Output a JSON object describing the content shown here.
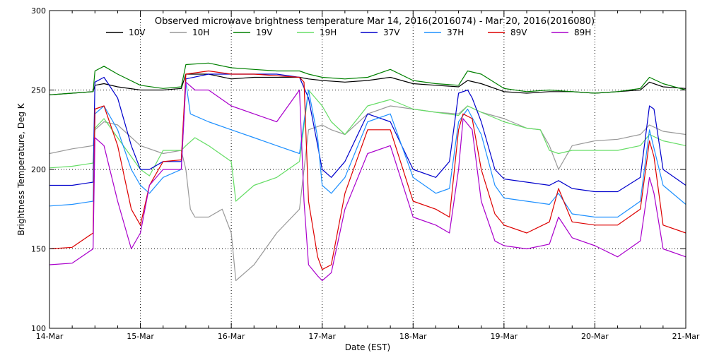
{
  "chart_data": {
    "type": "line",
    "title": "Observed microwave brightness temperature Mar 14, 2016(2016074) - Mar 20, 2016(2016080)",
    "xlabel": "Date (EST)",
    "ylabel": "Brightness Temperature, Deg K",
    "xlim": [
      0,
      7
    ],
    "ylim": [
      100,
      300
    ],
    "x_ticks": [
      {
        "x": 0,
        "label": "14-Mar"
      },
      {
        "x": 1,
        "label": "15-Mar"
      },
      {
        "x": 2,
        "label": "16-Mar"
      },
      {
        "x": 3,
        "label": "17-Mar"
      },
      {
        "x": 4,
        "label": "18-Mar"
      },
      {
        "x": 5,
        "label": "19-Mar"
      },
      {
        "x": 6,
        "label": "20-Mar"
      },
      {
        "x": 7,
        "label": "21-Mar"
      }
    ],
    "y_ticks": [
      100,
      150,
      200,
      250,
      300
    ],
    "grid": {
      "x_dotted_at": [
        1,
        2,
        3,
        4,
        5,
        6
      ],
      "y_dotted_at": [
        150,
        200,
        250
      ]
    },
    "legend_position": "top",
    "series": [
      {
        "name": "10V",
        "color": "#000000",
        "x": [
          0,
          0.25,
          0.48,
          0.5,
          0.6,
          0.75,
          1.0,
          1.25,
          1.45,
          1.5,
          1.75,
          2.0,
          2.25,
          2.5,
          2.75,
          2.85,
          3.0,
          3.25,
          3.5,
          3.75,
          4.0,
          4.25,
          4.5,
          4.6,
          4.75,
          5.0,
          5.25,
          5.5,
          5.75,
          6.0,
          6.25,
          6.5,
          6.6,
          6.75,
          7.0
        ],
        "y": [
          247,
          248,
          249,
          253,
          254,
          252,
          250,
          250,
          251,
          260,
          260,
          257,
          258,
          258,
          258,
          257,
          256,
          255,
          256,
          258,
          254,
          253,
          252,
          256,
          254,
          249,
          248,
          249,
          249,
          248,
          249,
          250,
          255,
          252,
          251
        ]
      },
      {
        "name": "10H",
        "color": "#999999",
        "x": [
          0,
          0.25,
          0.48,
          0.5,
          0.6,
          0.75,
          1.0,
          1.25,
          1.45,
          1.5,
          1.55,
          1.6,
          1.75,
          1.9,
          2.0,
          2.05,
          2.25,
          2.5,
          2.75,
          2.85,
          3.0,
          3.1,
          3.25,
          3.5,
          3.75,
          4.0,
          4.25,
          4.5,
          4.6,
          4.75,
          5.0,
          5.25,
          5.4,
          5.5,
          5.6,
          5.75,
          6.0,
          6.25,
          6.5,
          6.6,
          6.75,
          7.0
        ],
        "y": [
          210,
          213,
          215,
          225,
          230,
          228,
          215,
          210,
          212,
          200,
          175,
          170,
          170,
          175,
          160,
          130,
          140,
          160,
          175,
          225,
          228,
          225,
          222,
          235,
          240,
          238,
          236,
          235,
          240,
          236,
          232,
          226,
          225,
          215,
          200,
          215,
          218,
          219,
          222,
          228,
          224,
          222
        ]
      },
      {
        "name": "19V",
        "color": "#008000",
        "x": [
          0,
          0.25,
          0.48,
          0.5,
          0.6,
          0.75,
          1.0,
          1.25,
          1.45,
          1.5,
          1.75,
          2.0,
          2.25,
          2.5,
          2.75,
          2.85,
          3.0,
          3.25,
          3.5,
          3.75,
          4.0,
          4.25,
          4.5,
          4.6,
          4.75,
          5.0,
          5.25,
          5.5,
          5.75,
          6.0,
          6.25,
          6.5,
          6.6,
          6.75,
          7.0
        ],
        "y": [
          247,
          248,
          249,
          262,
          265,
          260,
          253,
          251,
          252,
          266,
          267,
          264,
          263,
          262,
          262,
          260,
          258,
          257,
          258,
          263,
          256,
          254,
          253,
          262,
          260,
          251,
          249,
          250,
          249,
          248,
          249,
          251,
          258,
          254,
          250
        ]
      },
      {
        "name": "19H",
        "color": "#66dd66",
        "x": [
          0,
          0.25,
          0.48,
          0.5,
          0.6,
          0.75,
          1.0,
          1.1,
          1.25,
          1.45,
          1.5,
          1.6,
          1.75,
          2.0,
          2.05,
          2.25,
          2.5,
          2.75,
          2.85,
          3.0,
          3.1,
          3.25,
          3.5,
          3.75,
          4.0,
          4.25,
          4.5,
          4.6,
          4.75,
          5.0,
          5.25,
          5.4,
          5.5,
          5.6,
          5.75,
          6.0,
          6.25,
          6.5,
          6.6,
          6.75,
          7.0
        ],
        "y": [
          201,
          202,
          204,
          226,
          232,
          220,
          200,
          196,
          212,
          212,
          215,
          220,
          215,
          205,
          180,
          190,
          195,
          205,
          250,
          240,
          230,
          222,
          240,
          244,
          238,
          236,
          234,
          240,
          236,
          230,
          226,
          225,
          212,
          210,
          212,
          212,
          212,
          215,
          222,
          218,
          215
        ]
      },
      {
        "name": "37V",
        "color": "#0000cc",
        "x": [
          0,
          0.25,
          0.48,
          0.5,
          0.6,
          0.75,
          0.9,
          1.0,
          1.1,
          1.25,
          1.45,
          1.5,
          1.75,
          2.0,
          2.25,
          2.5,
          2.75,
          2.85,
          2.95,
          3.0,
          3.1,
          3.25,
          3.5,
          3.75,
          4.0,
          4.25,
          4.4,
          4.5,
          4.6,
          4.65,
          4.75,
          4.9,
          5.0,
          5.25,
          5.5,
          5.6,
          5.75,
          6.0,
          6.25,
          6.5,
          6.6,
          6.65,
          6.75,
          7.0
        ],
        "y": [
          190,
          190,
          192,
          255,
          258,
          245,
          215,
          200,
          200,
          205,
          205,
          257,
          260,
          260,
          260,
          260,
          258,
          245,
          215,
          200,
          195,
          205,
          235,
          230,
          200,
          195,
          205,
          248,
          250,
          245,
          230,
          200,
          194,
          192,
          190,
          193,
          188,
          186,
          186,
          195,
          240,
          238,
          200,
          190
        ]
      },
      {
        "name": "37H",
        "color": "#1e90ff",
        "x": [
          0,
          0.25,
          0.48,
          0.5,
          0.6,
          0.75,
          0.9,
          1.0,
          1.1,
          1.25,
          1.45,
          1.5,
          1.55,
          1.75,
          2.0,
          2.25,
          2.5,
          2.75,
          2.85,
          2.95,
          3.0,
          3.1,
          3.25,
          3.5,
          3.75,
          4.0,
          4.25,
          4.4,
          4.5,
          4.6,
          4.75,
          4.9,
          5.0,
          5.25,
          5.5,
          5.6,
          5.75,
          6.0,
          6.25,
          6.5,
          6.6,
          6.75,
          7.0
        ],
        "y": [
          177,
          178,
          180,
          235,
          240,
          225,
          200,
          190,
          185,
          195,
          200,
          255,
          235,
          230,
          225,
          220,
          215,
          210,
          250,
          220,
          190,
          185,
          195,
          230,
          235,
          195,
          185,
          188,
          230,
          238,
          222,
          190,
          182,
          180,
          178,
          185,
          172,
          170,
          170,
          180,
          225,
          190,
          178
        ]
      },
      {
        "name": "89V",
        "color": "#dd0000",
        "x": [
          0,
          0.25,
          0.48,
          0.5,
          0.6,
          0.75,
          0.9,
          1.0,
          1.1,
          1.25,
          1.45,
          1.5,
          1.75,
          2.0,
          2.25,
          2.5,
          2.75,
          2.8,
          2.85,
          2.95,
          3.0,
          3.1,
          3.25,
          3.5,
          3.75,
          4.0,
          4.25,
          4.4,
          4.5,
          4.55,
          4.65,
          4.75,
          4.9,
          5.0,
          5.25,
          5.5,
          5.6,
          5.75,
          6.0,
          6.25,
          6.5,
          6.6,
          6.65,
          6.75,
          7.0
        ],
        "y": [
          150,
          151,
          160,
          238,
          240,
          215,
          175,
          165,
          190,
          205,
          206,
          260,
          262,
          260,
          260,
          259,
          258,
          255,
          180,
          145,
          137,
          140,
          185,
          225,
          225,
          180,
          175,
          170,
          225,
          235,
          232,
          200,
          172,
          165,
          160,
          167,
          188,
          167,
          165,
          165,
          175,
          218,
          208,
          165,
          160
        ]
      },
      {
        "name": "89H",
        "color": "#aa00cc",
        "x": [
          0,
          0.25,
          0.48,
          0.5,
          0.6,
          0.75,
          0.9,
          1.0,
          1.1,
          1.25,
          1.45,
          1.5,
          1.6,
          1.75,
          2.0,
          2.25,
          2.5,
          2.75,
          2.8,
          2.85,
          2.95,
          3.0,
          3.1,
          3.25,
          3.5,
          3.75,
          4.0,
          4.25,
          4.4,
          4.5,
          4.55,
          4.65,
          4.75,
          4.9,
          5.0,
          5.25,
          5.5,
          5.6,
          5.75,
          6.0,
          6.25,
          6.5,
          6.6,
          6.65,
          6.75,
          7.0
        ],
        "y": [
          140,
          141,
          150,
          220,
          215,
          180,
          150,
          160,
          190,
          200,
          200,
          255,
          250,
          250,
          240,
          235,
          230,
          250,
          180,
          140,
          133,
          130,
          135,
          175,
          210,
          215,
          170,
          165,
          160,
          200,
          232,
          225,
          180,
          155,
          152,
          150,
          153,
          170,
          157,
          152,
          145,
          155,
          195,
          185,
          150,
          145
        ]
      }
    ]
  }
}
